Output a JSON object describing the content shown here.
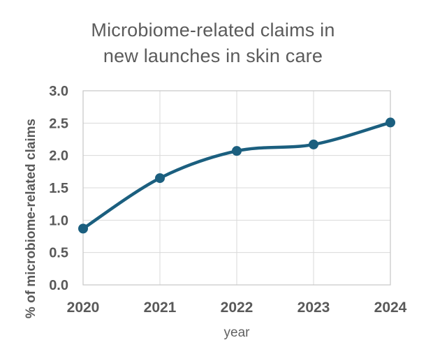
{
  "chart_data": {
    "type": "line",
    "title": "Microbiome-related claims in new launches in skin care",
    "title_line1": "Microbiome-related claims in",
    "title_line2": "new launches in skin care",
    "xlabel": "year",
    "ylabel": "% of microbiome-related claims",
    "categories": [
      "2020",
      "2021",
      "2022",
      "2023",
      "2024"
    ],
    "values": [
      0.87,
      1.65,
      2.07,
      2.17,
      2.51
    ],
    "ylim": [
      0.0,
      3.0
    ],
    "y_ticks": [
      0.0,
      0.5,
      1.0,
      1.5,
      2.0,
      2.5,
      3.0
    ],
    "grid": true,
    "legend": false,
    "marker": "circle",
    "smooth": true
  },
  "colors": {
    "line": "#1b5f7f",
    "marker": "#1b5f7f",
    "gridline": "#dadada",
    "plot_border": "#c6c6c6",
    "tick_label": "#595959",
    "title_text": "#5b5b5b",
    "axis_label": "#595959"
  }
}
